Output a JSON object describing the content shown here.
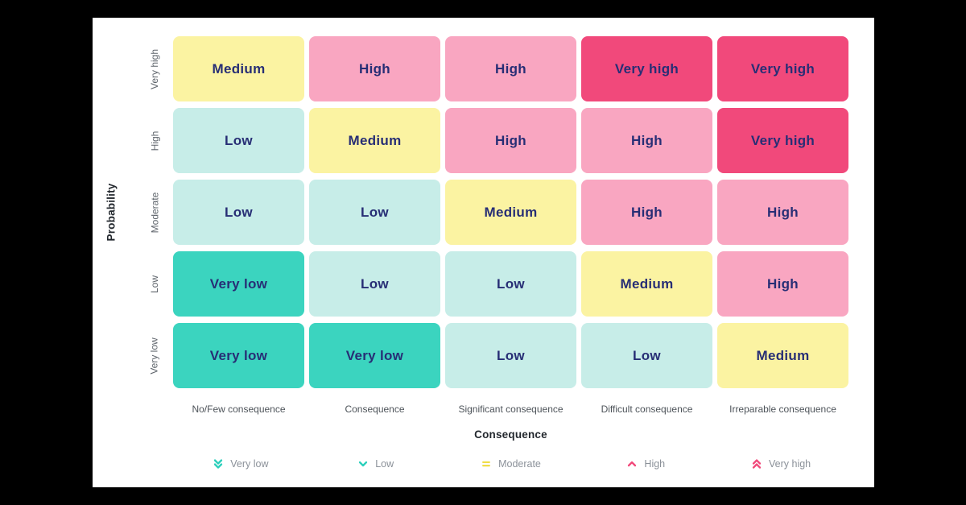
{
  "page": {
    "background": "#000000",
    "card_background": "#ffffff"
  },
  "colors": {
    "very_low": "#3BD4BF",
    "low": "#C7EDE8",
    "medium": "#FBF3A2",
    "high": "#F9A6C1",
    "very_high": "#F1497B",
    "cell_text": "#272E75",
    "axis_title_text": "#23282E",
    "axis_label_text": "#4D5359",
    "row_label_text": "#5E646B",
    "legend_text": "#8B9199",
    "legend_teal": "#2BCFBB",
    "legend_yellow": "#F0DE4A",
    "legend_pink": "#F1497B"
  },
  "chart_data": {
    "type": "heatmap",
    "title": "",
    "xlabel": "Consequence",
    "ylabel": "Probability",
    "x_categories": [
      "No/Few consequence",
      "Consequence",
      "Significant consequence",
      "Difficult consequence",
      "Irreparable consequence"
    ],
    "y_categories": [
      "Very high",
      "High",
      "Moderate",
      "Low",
      "Very low"
    ],
    "grid": "off",
    "legend_position": "bottom",
    "rows": [
      {
        "probability": "Very high",
        "cells": [
          {
            "label": "Medium",
            "level": "medium"
          },
          {
            "label": "High",
            "level": "high"
          },
          {
            "label": "High",
            "level": "high"
          },
          {
            "label": "Very high",
            "level": "very_high"
          },
          {
            "label": "Very high",
            "level": "very_high"
          }
        ]
      },
      {
        "probability": "High",
        "cells": [
          {
            "label": "Low",
            "level": "low"
          },
          {
            "label": "Medium",
            "level": "medium"
          },
          {
            "label": "High",
            "level": "high"
          },
          {
            "label": "High",
            "level": "high"
          },
          {
            "label": "Very high",
            "level": "very_high"
          }
        ]
      },
      {
        "probability": "Moderate",
        "cells": [
          {
            "label": "Low",
            "level": "low"
          },
          {
            "label": "Low",
            "level": "low"
          },
          {
            "label": "Medium",
            "level": "medium"
          },
          {
            "label": "High",
            "level": "high"
          },
          {
            "label": "High",
            "level": "high"
          }
        ]
      },
      {
        "probability": "Low",
        "cells": [
          {
            "label": "Very low",
            "level": "very_low"
          },
          {
            "label": "Low",
            "level": "low"
          },
          {
            "label": "Low",
            "level": "low"
          },
          {
            "label": "Medium",
            "level": "medium"
          },
          {
            "label": "High",
            "level": "high"
          }
        ]
      },
      {
        "probability": "Very low",
        "cells": [
          {
            "label": "Very low",
            "level": "very_low"
          },
          {
            "label": "Very low",
            "level": "very_low"
          },
          {
            "label": "Low",
            "level": "low"
          },
          {
            "label": "Low",
            "level": "low"
          },
          {
            "label": "Medium",
            "level": "medium"
          }
        ]
      }
    ],
    "legend": [
      {
        "label": "Very low",
        "icon": "double-chevron-down-icon",
        "color": "#2BCFBB"
      },
      {
        "label": "Low",
        "icon": "chevron-down-icon",
        "color": "#2BCFBB"
      },
      {
        "label": "Moderate",
        "icon": "equals-icon",
        "color": "#F0DE4A"
      },
      {
        "label": "High",
        "icon": "chevron-up-icon",
        "color": "#F1497B"
      },
      {
        "label": "Very high",
        "icon": "double-chevron-up-icon",
        "color": "#F1497B"
      }
    ]
  }
}
